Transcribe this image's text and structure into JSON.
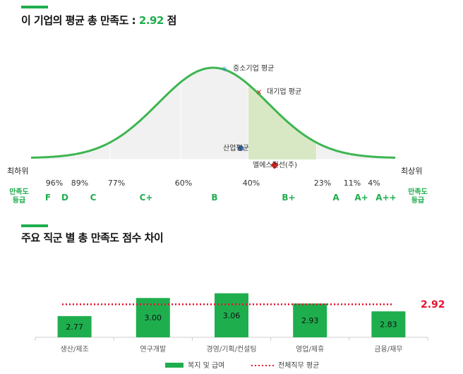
{
  "header1": {
    "title_prefix": "이 기업의 평균 총 만족도 : ",
    "score": "2.92",
    "title_suffix": " 점"
  },
  "header2": {
    "title": "주요 직군 별 총 만족도 점수 차이"
  },
  "colors": {
    "accent": "#1fae4e",
    "curve": "#3db551",
    "highlight_fill": "#d9e8c4",
    "band_fill": "#f1f1f1",
    "company_marker": "#e02020",
    "industry_marker": "#3b6db3",
    "sme_marker": "#2a8fd6",
    "large_marker": "#e02020",
    "avg_line": "#e8112d"
  },
  "chart_data": [
    {
      "type": "area",
      "title": "이 기업의 평균 총 만족도 : 2.92 점",
      "left_label": "최하위",
      "right_label": "최상위",
      "left_grade_label": [
        "만족도",
        "등급"
      ],
      "right_grade_label": [
        "만족도",
        "등급"
      ],
      "percentiles": [
        "96%",
        "89%",
        "77%",
        "60%",
        "40%",
        "23%",
        "11%",
        "4%"
      ],
      "grades": [
        "F",
        "D",
        "C",
        "C+",
        "B",
        "B+",
        "A",
        "A+",
        "A++"
      ],
      "highlighted_grade": "B+",
      "markers": [
        {
          "name": "중소기업 평균",
          "symbol": "star",
          "color": "#2a8fd6"
        },
        {
          "name": "대기업 평균",
          "symbol": "cross",
          "color": "#e02020"
        },
        {
          "name": "산업평균",
          "symbol": "circle",
          "color": "#3b6db3"
        },
        {
          "name": "엘에스전선(주)",
          "symbol": "diamond",
          "color": "#e02020"
        }
      ]
    },
    {
      "type": "bar",
      "title": "주요 직군 별 총 만족도 점수 차이",
      "categories": [
        "생산/제조",
        "연구개발",
        "경영/기획/컨설팅",
        "영업/제휴",
        "금융/재무"
      ],
      "series": [
        {
          "name": "복지 및 급여",
          "values": [
            2.77,
            3.0,
            3.06,
            2.93,
            2.83
          ],
          "value_labels": [
            "2.77",
            "3.00",
            "3.06",
            "2.93",
            "2.83"
          ]
        }
      ],
      "reference_line": {
        "name": "전체직무 평균",
        "value": 2.92,
        "label": "2.92"
      },
      "ylim": [
        2.5,
        3.2
      ]
    }
  ]
}
